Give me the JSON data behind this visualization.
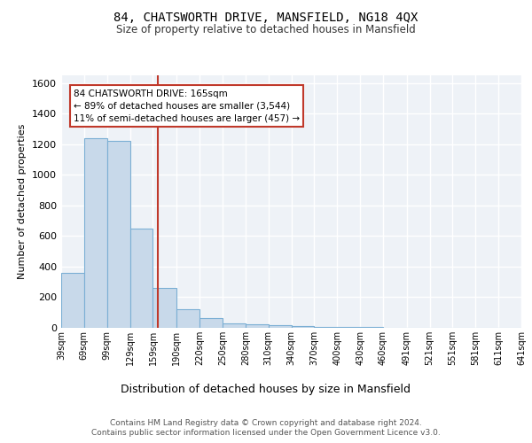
{
  "title": "84, CHATSWORTH DRIVE, MANSFIELD, NG18 4QX",
  "subtitle": "Size of property relative to detached houses in Mansfield",
  "xlabel": "Distribution of detached houses by size in Mansfield",
  "ylabel": "Number of detached properties",
  "footer_line1": "Contains HM Land Registry data © Crown copyright and database right 2024.",
  "footer_line2": "Contains public sector information licensed under the Open Government Licence v3.0.",
  "annotation_line1": "84 CHATSWORTH DRIVE: 165sqm",
  "annotation_line2": "← 89% of detached houses are smaller (3,544)",
  "annotation_line3": "11% of semi-detached houses are larger (457) →",
  "bar_color": "#c8d9ea",
  "bar_edge_color": "#7bafd4",
  "vline_color": "#c0392b",
  "vline_x": 165,
  "background_color": "#eef2f7",
  "grid_color": "#ffffff",
  "bins": [
    39,
    69,
    99,
    129,
    159,
    190,
    220,
    250,
    280,
    310,
    340,
    370,
    400,
    430,
    460,
    491,
    521,
    551,
    581,
    611,
    641
  ],
  "bin_labels": [
    "39sqm",
    "69sqm",
    "99sqm",
    "129sqm",
    "159sqm",
    "190sqm",
    "220sqm",
    "250sqm",
    "280sqm",
    "310sqm",
    "340sqm",
    "370sqm",
    "400sqm",
    "430sqm",
    "460sqm",
    "491sqm",
    "521sqm",
    "551sqm",
    "581sqm",
    "611sqm",
    "641sqm"
  ],
  "counts": [
    360,
    1240,
    1220,
    650,
    260,
    120,
    65,
    30,
    22,
    15,
    10,
    8,
    5,
    3,
    2,
    1,
    0,
    0,
    0,
    0
  ],
  "ylim": [
    0,
    1650
  ],
  "yticks": [
    0,
    200,
    400,
    600,
    800,
    1000,
    1200,
    1400,
    1600
  ]
}
